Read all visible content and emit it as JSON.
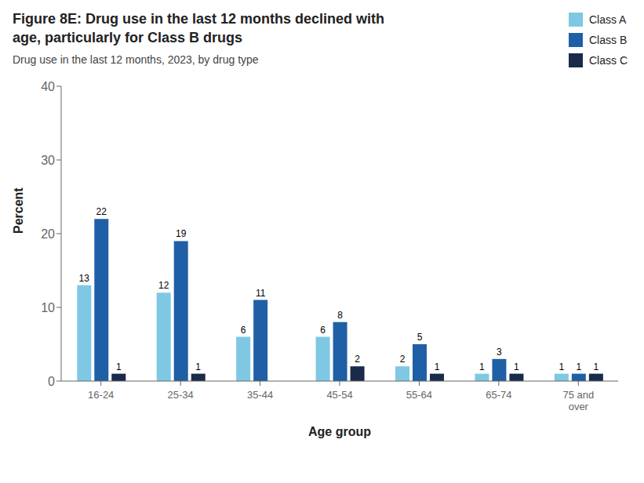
{
  "chart_data": {
    "type": "bar",
    "title": "Figure 8E: Drug use in the last 12 months declined with\nage, particularly for Class B drugs",
    "subtitle": "Drug use in the last 12 months, 2023, by drug type",
    "xlabel": "Age group",
    "ylabel": "Percent",
    "categories": [
      "16-24",
      "25-34",
      "35-44",
      "45-54",
      "55-64",
      "65-74",
      "75 and\nover"
    ],
    "series": [
      {
        "name": "Class A",
        "color": "#7EC8E3",
        "values": [
          13,
          12,
          6,
          6,
          2,
          1,
          1
        ]
      },
      {
        "name": "Class B",
        "color": "#1F5FA6",
        "values": [
          22,
          19,
          11,
          8,
          5,
          3,
          1
        ]
      },
      {
        "name": "Class C",
        "color": "#1A2A4A",
        "values": [
          1,
          1,
          0,
          2,
          1,
          1,
          1
        ]
      }
    ],
    "ylim": [
      0,
      40
    ],
    "yticks": [
      0,
      10,
      20,
      30,
      40
    ],
    "grid": false,
    "legend": "top right",
    "data_labels": true
  }
}
